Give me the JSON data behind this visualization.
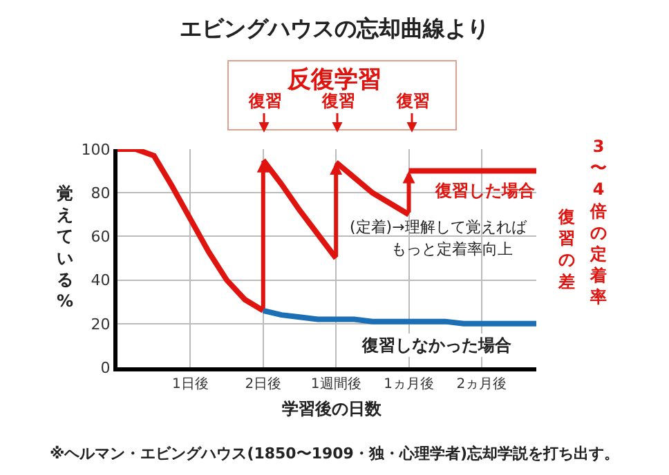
{
  "chart_data": {
    "type": "line",
    "title": "エビングハウスの忘却曲線より",
    "xlabel": "学習後の日数",
    "ylabel": "覚えている%",
    "categories": [
      null,
      null,
      null,
      null,
      "1日後",
      null,
      null,
      null,
      "2日後",
      null,
      null,
      null,
      "1週間後",
      null,
      null,
      null,
      "1ヵ月後",
      null,
      null,
      null,
      "2ヵ月後",
      null,
      null,
      null
    ],
    "ylim": [
      0,
      100
    ],
    "yticks": [
      0,
      20,
      40,
      60,
      80,
      100
    ],
    "grid": true,
    "legend": false,
    "marker": "none",
    "line_style": "solid",
    "series": [
      {
        "color": "#e0140f",
        "values": [
          100,
          100,
          97,
          83,
          68,
          53,
          40,
          31,
          26,
          null,
          null,
          null,
          null,
          null,
          null,
          null,
          null,
          null,
          null,
          null,
          null,
          null,
          null,
          null
        ]
      },
      {
        "color": "#e0140f",
        "values": [
          null,
          null,
          null,
          null,
          null,
          null,
          null,
          null,
          95,
          84,
          72,
          61,
          50,
          null,
          null,
          null,
          null,
          null,
          null,
          null,
          null,
          null,
          null,
          null
        ]
      },
      {
        "color": "#e0140f",
        "values": [
          null,
          null,
          null,
          null,
          null,
          null,
          null,
          null,
          null,
          null,
          null,
          null,
          94,
          87,
          80,
          75,
          70,
          null,
          null,
          null,
          null,
          null,
          null,
          null
        ]
      },
      {
        "name": "復習した場合",
        "color": "#e0140f",
        "values": [
          null,
          null,
          null,
          null,
          null,
          null,
          null,
          null,
          null,
          null,
          null,
          null,
          null,
          null,
          null,
          null,
          90,
          90,
          90,
          90,
          90,
          90,
          90,
          90
        ]
      },
      {
        "name": "復習しなかった場合",
        "color": "#1a6fb5",
        "values": [
          null,
          null,
          null,
          null,
          null,
          null,
          null,
          null,
          26,
          24,
          23,
          22,
          22,
          22,
          21,
          21,
          21,
          21,
          21,
          20,
          20,
          20,
          20,
          20
        ]
      }
    ],
    "annotations": [
      "反復学習",
      "復習",
      "復習",
      "復習",
      "(定着)→理解して覚えれば",
      "もっと定着率向上",
      "復習の差",
      "3〜4倍の定着率",
      "※ヘルマン・エビングハウス(1850〜1909・独・心理学者)忘却学説を打ち出す。"
    ]
  }
}
